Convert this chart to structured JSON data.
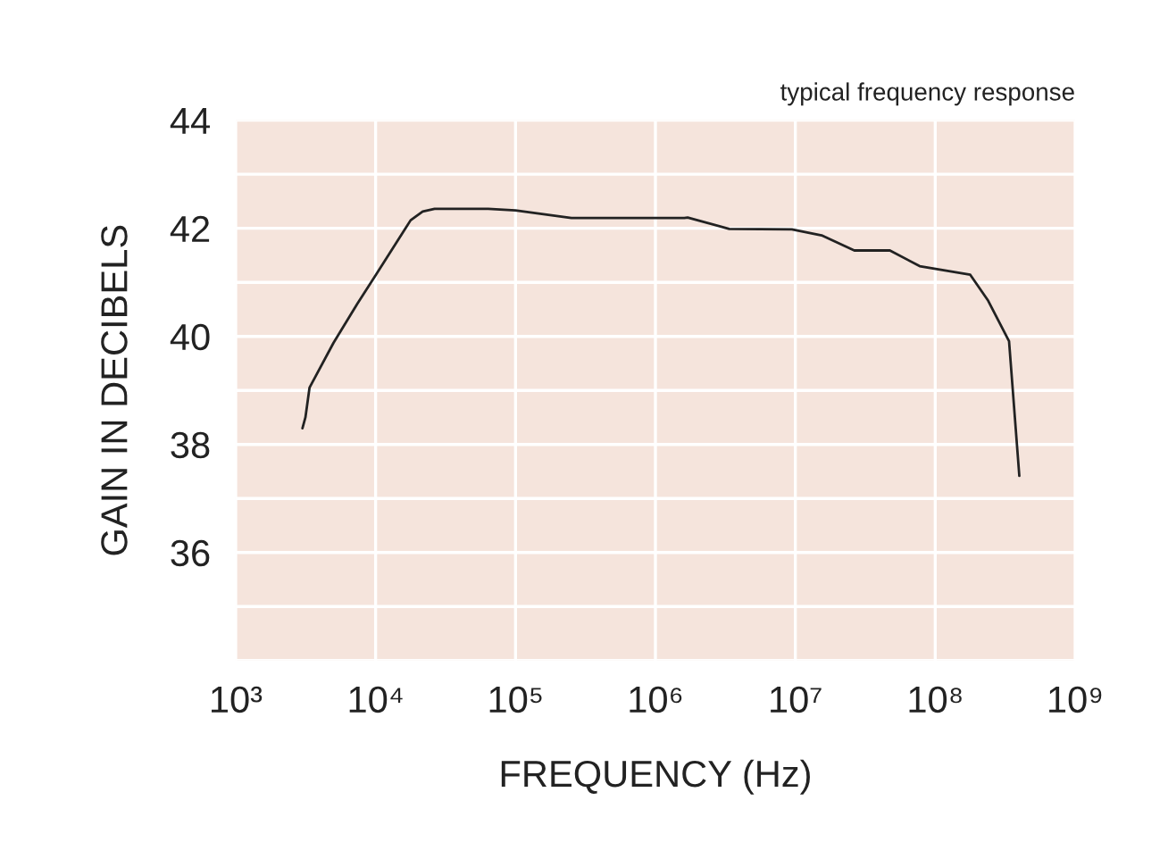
{
  "chart_data": {
    "type": "line",
    "title": "typical frequency response",
    "xlabel": "FREQUENCY (Hz)",
    "ylabel": "GAIN IN DECIBELS",
    "log": "x",
    "grid": true,
    "marker": "none",
    "line_style": "solid",
    "xlim": [
      1000,
      1000000000
    ],
    "xticks": [
      {
        "value": 1000,
        "label": "10³"
      },
      {
        "value": 10000,
        "label": "10⁴"
      },
      {
        "value": 100000,
        "label": "10⁵"
      },
      {
        "value": 1000000,
        "label": "10⁶"
      },
      {
        "value": 10000000,
        "label": "10⁷"
      },
      {
        "value": 100000000,
        "label": "10⁸"
      },
      {
        "value": 1000000000,
        "label": "10⁹"
      }
    ],
    "ylim": [
      34,
      44
    ],
    "yticks": [
      {
        "value": 34,
        "label": null
      },
      {
        "value": 35,
        "label": null
      },
      36,
      {
        "value": 37,
        "label": null
      },
      38,
      {
        "value": 39,
        "label": null
      },
      40,
      {
        "value": 41,
        "label": null
      },
      42,
      {
        "value": 43,
        "label": null
      },
      44
    ],
    "series": [
      {
        "color": "#222222",
        "x": [
          3000,
          3150,
          3370,
          5000,
          7380,
          10100,
          17800,
          21700,
          26400,
          63700,
          100000,
          251000,
          1610000,
          1700000,
          3370000,
          9440000,
          15400000,
          26400000,
          47400000,
          77400000,
          178000000,
          239000000,
          337000000,
          399000000
        ],
        "values": [
          38.3,
          38.5,
          39.05,
          39.88,
          40.6,
          41.15,
          42.15,
          42.31,
          42.36,
          42.36,
          42.33,
          42.19,
          42.19,
          42.2,
          41.99,
          41.98,
          41.87,
          41.59,
          41.59,
          41.3,
          41.14,
          40.66,
          39.91,
          37.42
        ]
      }
    ]
  }
}
